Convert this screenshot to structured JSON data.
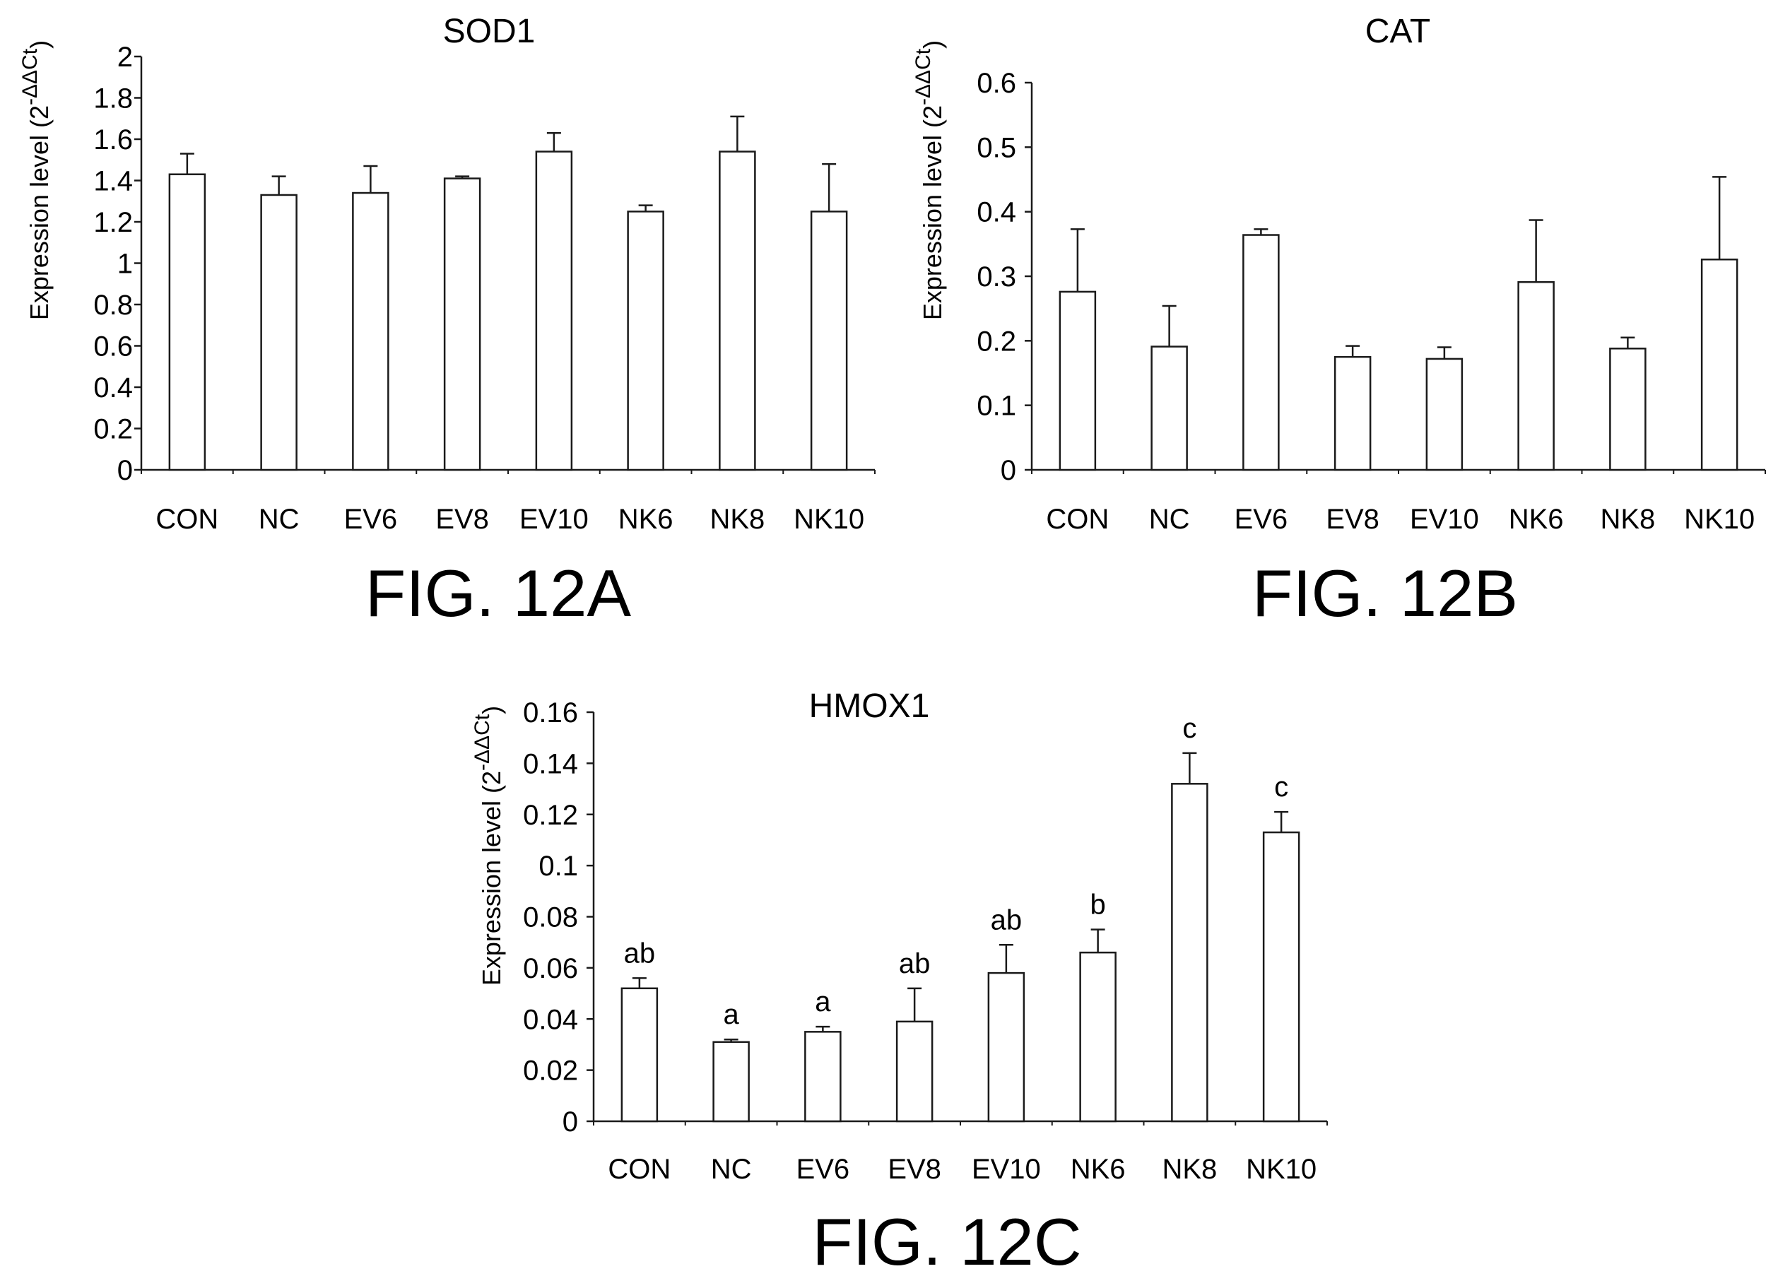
{
  "figures": [
    "FIG. 12A",
    "FIG. 12B",
    "FIG. 12C"
  ],
  "chart_data": [
    {
      "type": "bar",
      "title": "SOD1",
      "ylabel": "Expression level (2",
      "ylabel_sup": "-ΔΔCt",
      "ylabel_close": ")",
      "categories": [
        "CON",
        "NC",
        "EV6",
        "EV8",
        "EV10",
        "NK6",
        "NK8",
        "NK10"
      ],
      "values": [
        1.43,
        1.33,
        1.34,
        1.41,
        1.54,
        1.25,
        1.54,
        1.25
      ],
      "errors": [
        0.1,
        0.09,
        0.13,
        0.01,
        0.09,
        0.03,
        0.17,
        0.23
      ],
      "ylim": [
        0,
        2
      ],
      "yticks": [
        "0",
        "0.2",
        "0.4",
        "0.6",
        "0.8",
        "1",
        "1.2",
        "1.4",
        "1.6",
        "1.8",
        "2"
      ],
      "grid": false,
      "legend": false
    },
    {
      "type": "bar",
      "title": "CAT",
      "ylabel": "Expression level (2",
      "ylabel_sup": "-ΔΔCt",
      "ylabel_close": ")",
      "categories": [
        "CON",
        "NC",
        "EV6",
        "EV8",
        "EV10",
        "NK6",
        "NK8",
        "NK10"
      ],
      "values": [
        0.276,
        0.191,
        0.364,
        0.175,
        0.172,
        0.291,
        0.188,
        0.326
      ],
      "errors": [
        0.097,
        0.063,
        0.009,
        0.017,
        0.018,
        0.096,
        0.017,
        0.128
      ],
      "ylim": [
        0,
        0.6
      ],
      "yticks": [
        "0",
        "0.1",
        "0.2",
        "0.3",
        "0.4",
        "0.5",
        "0.6"
      ],
      "grid": false,
      "legend": false
    },
    {
      "type": "bar",
      "title": "HMOX1",
      "ylabel": "Expression level (2",
      "ylabel_sup": "-ΔΔCt",
      "ylabel_close": ")",
      "categories": [
        "CON",
        "NC",
        "EV6",
        "EV8",
        "EV10",
        "NK6",
        "NK8",
        "NK10"
      ],
      "values": [
        0.052,
        0.031,
        0.035,
        0.039,
        0.058,
        0.066,
        0.132,
        0.113
      ],
      "errors": [
        0.004,
        0.001,
        0.002,
        0.013,
        0.011,
        0.009,
        0.012,
        0.008
      ],
      "labels": [
        "ab",
        "a",
        "a",
        "ab",
        "ab",
        "b",
        "c",
        "c"
      ],
      "ylim": [
        0,
        0.16
      ],
      "yticks": [
        "0",
        "0.02",
        "0.04",
        "0.06",
        "0.08",
        "0.1",
        "0.12",
        "0.14",
        "0.16"
      ],
      "grid": false,
      "legend": false
    }
  ]
}
